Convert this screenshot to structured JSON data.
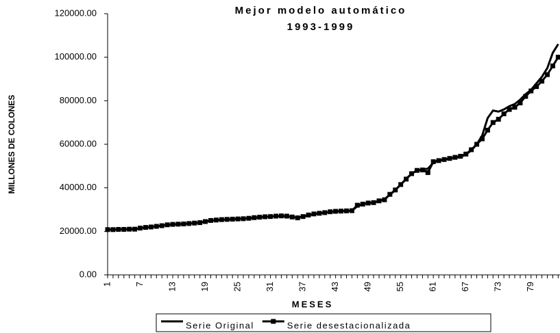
{
  "chart_data": {
    "type": "line",
    "title": "Mejor modelo automático",
    "subtitle": "1993-1999",
    "x_label": "MESES",
    "y_label": "MILLONES DE COLONES",
    "categories": [
      "1",
      null,
      null,
      null,
      null,
      null,
      "7",
      null,
      null,
      null,
      null,
      null,
      "13",
      null,
      null,
      null,
      null,
      null,
      "19",
      null,
      null,
      null,
      null,
      null,
      "25",
      null,
      null,
      null,
      null,
      null,
      "31",
      null,
      null,
      null,
      null,
      null,
      "37",
      null,
      null,
      null,
      null,
      null,
      "43",
      null,
      null,
      null,
      null,
      null,
      "49",
      null,
      null,
      null,
      null,
      null,
      "55",
      null,
      null,
      null,
      null,
      null,
      "61",
      null,
      null,
      null,
      null,
      null,
      "67",
      null,
      null,
      null,
      null,
      null,
      "73",
      null,
      null,
      null,
      null,
      null,
      "79",
      null,
      null,
      null,
      null,
      null
    ],
    "series": [
      {
        "name": "Serie Original",
        "color": "#000000",
        "marker": "none",
        "values": [
          20700,
          20800,
          20800,
          20900,
          21000,
          21000,
          21400,
          21700,
          22000,
          22300,
          22600,
          22900,
          23100,
          23300,
          23400,
          23600,
          23800,
          24000,
          24400,
          24900,
          25100,
          25300,
          25400,
          25500,
          25700,
          25800,
          26000,
          26200,
          26400,
          26600,
          26800,
          26900,
          27000,
          26900,
          26600,
          26300,
          26700,
          27300,
          27900,
          28300,
          28600,
          28900,
          29100,
          29300,
          29400,
          29500,
          31500,
          32500,
          33000,
          33300,
          34000,
          34800,
          36800,
          39000,
          41500,
          44200,
          46500,
          48000,
          48400,
          48800,
          51500,
          52500,
          53000,
          53400,
          53800,
          54200,
          55300,
          57200,
          60000,
          64000,
          72000,
          75500,
          75000,
          76000,
          77500,
          78500,
          80500,
          83000,
          85000,
          88000,
          91000,
          95000,
          102000,
          106000
        ]
      },
      {
        "name": "Serie desestacionalizada",
        "color": "#000000",
        "marker": "square",
        "values": [
          20800,
          20800,
          20900,
          20900,
          21000,
          21000,
          21500,
          21800,
          22000,
          22300,
          22600,
          23000,
          23200,
          23300,
          23400,
          23600,
          23800,
          24000,
          24500,
          25000,
          25200,
          25400,
          25500,
          25600,
          25700,
          25800,
          26000,
          26300,
          26500,
          26700,
          26800,
          27000,
          27100,
          27000,
          26600,
          26200,
          26800,
          27500,
          28000,
          28300,
          28600,
          29000,
          29200,
          29300,
          29400,
          29500,
          32000,
          32500,
          33000,
          33200,
          34000,
          34500,
          37000,
          39000,
          41500,
          44000,
          46500,
          48000,
          48200,
          47000,
          52000,
          52500,
          53000,
          53500,
          54000,
          54500,
          55500,
          57500,
          60000,
          62500,
          66500,
          70000,
          71500,
          74000,
          76000,
          77000,
          79000,
          82000,
          84500,
          86500,
          89000,
          92000,
          96000,
          100000
        ]
      }
    ],
    "ylim": [
      0,
      120000
    ],
    "yticks": [
      {
        "value": 0,
        "label": "0.00"
      },
      {
        "value": 20000,
        "label": "20000.00"
      },
      {
        "value": 40000,
        "label": "40000.00"
      },
      {
        "value": 60000,
        "label": "60000.00"
      },
      {
        "value": 80000,
        "label": "80000.00"
      },
      {
        "value": 100000,
        "label": "100000.00"
      },
      {
        "value": 120000,
        "label": "120000.00"
      }
    ],
    "grid": false,
    "legend": "bottom"
  }
}
